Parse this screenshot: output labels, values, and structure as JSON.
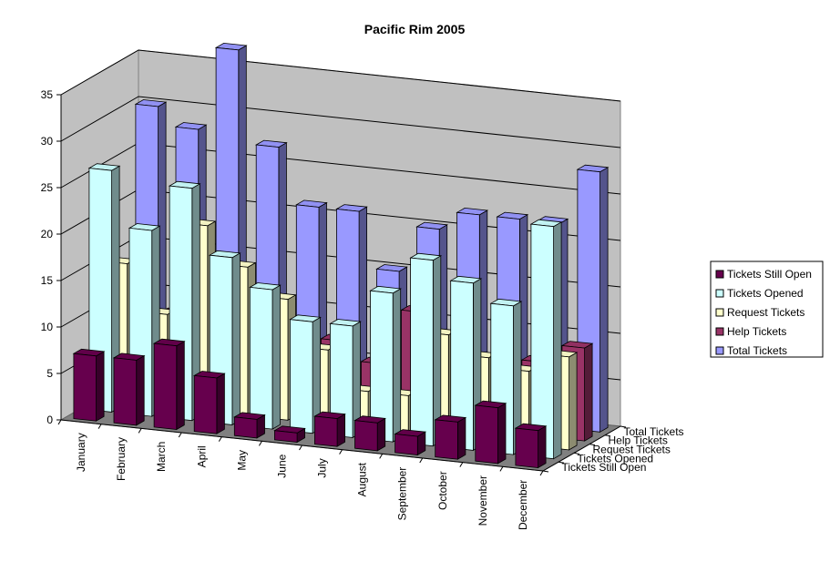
{
  "chart_data": {
    "type": "bar",
    "title": "Pacific Rim 2005",
    "xlabel": "",
    "ylabel": "",
    "ylim": [
      0,
      35
    ],
    "yticks": [
      0,
      5,
      10,
      15,
      20,
      25,
      30,
      35
    ],
    "grid": true,
    "legend_position": "right",
    "categories": [
      "January",
      "February",
      "March",
      "April",
      "May",
      "June",
      "July",
      "August",
      "September",
      "October",
      "November",
      "December"
    ],
    "series": [
      {
        "name": "Tickets Still Open",
        "color": "#66004d",
        "values": [
          7,
          7,
          9,
          6,
          2,
          1,
          3,
          3,
          2,
          4,
          6,
          4
        ]
      },
      {
        "name": "Tickets Opened",
        "color": "#ccffff",
        "values": [
          26,
          20,
          25,
          18,
          15,
          12,
          12,
          16,
          20,
          18,
          16,
          25
        ]
      },
      {
        "name": "Request Tickets",
        "color": "#ffffcc",
        "values": [
          15,
          10,
          20,
          16,
          13,
          8,
          4,
          4,
          11,
          9,
          8,
          10
        ]
      },
      {
        "name": "Help Tickets",
        "color": "#993366",
        "values": [
          8,
          9,
          4,
          2,
          2,
          8,
          6,
          12,
          5,
          7,
          8,
          10
        ]
      },
      {
        "name": "Total Tickets",
        "color": "#9999ff",
        "values": [
          30,
          28,
          37,
          27,
          21,
          21,
          15,
          20,
          22,
          22,
          22,
          28
        ]
      }
    ]
  }
}
